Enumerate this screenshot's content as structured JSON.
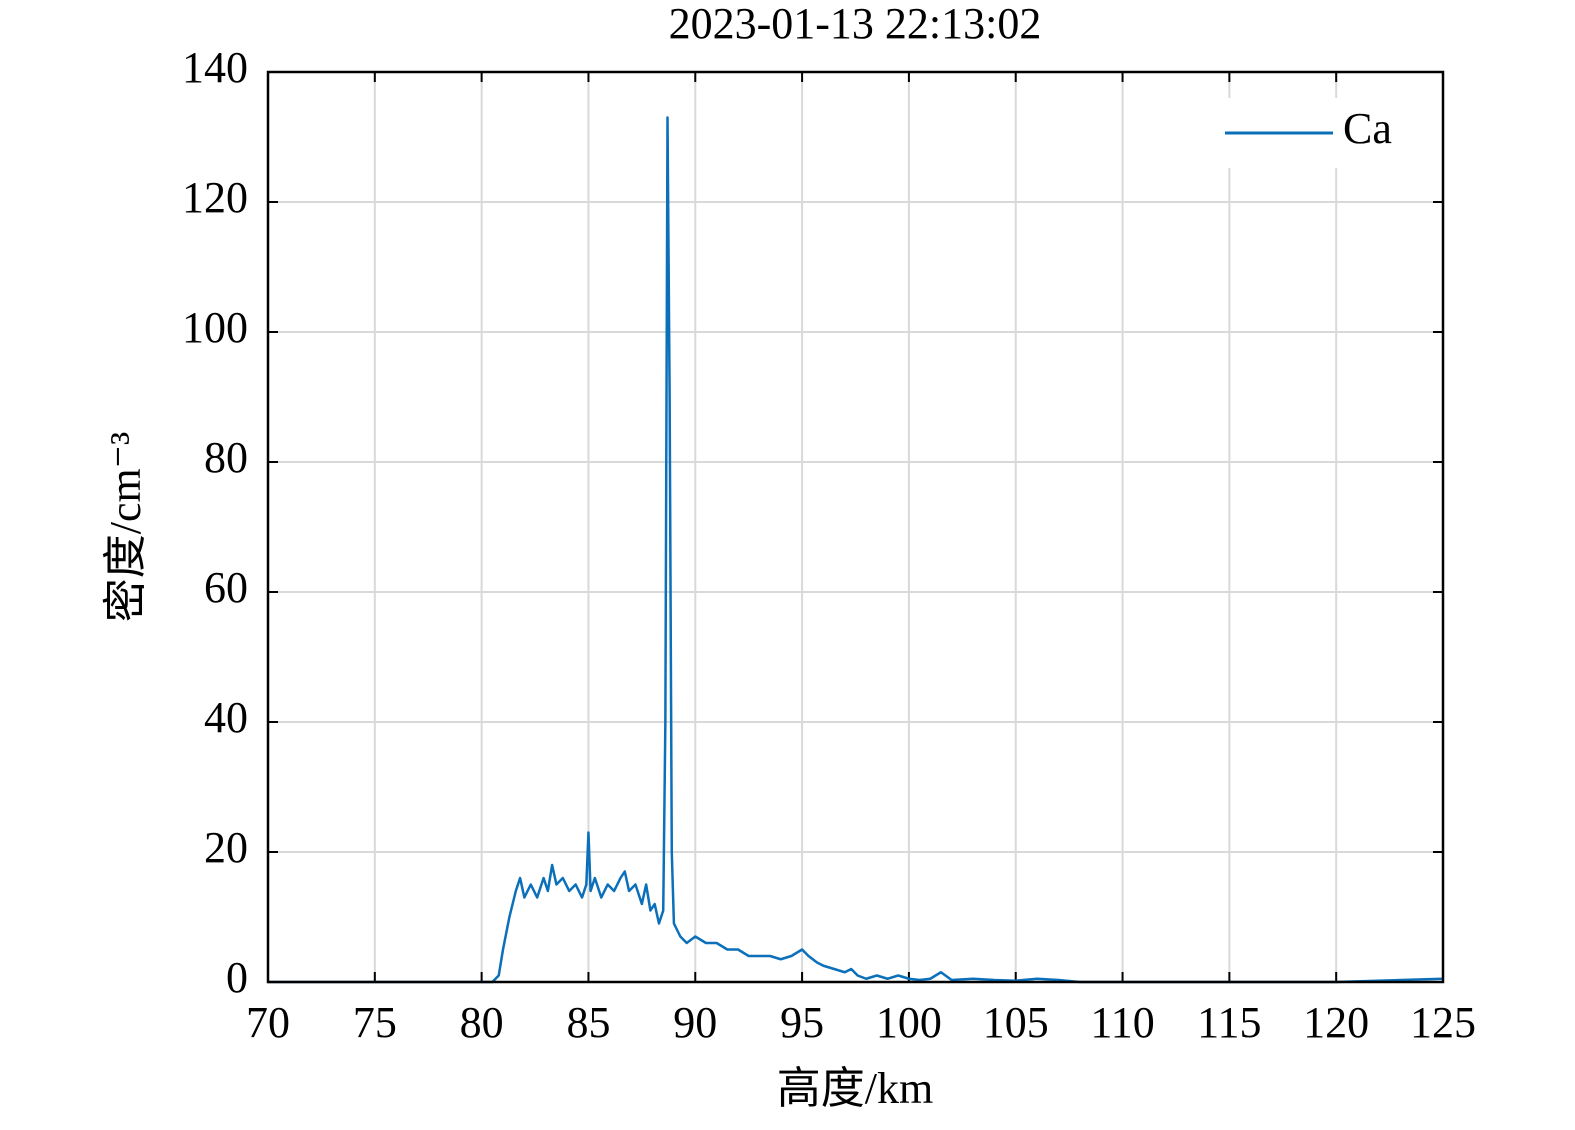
{
  "chart_data": {
    "type": "line",
    "title": "2023-01-13 22:13:02",
    "xlabel": "高度/km",
    "ylabel": "密度/cm⁻³",
    "x": [
      70,
      75,
      80,
      80.5,
      80.8,
      81,
      81.3,
      81.6,
      81.8,
      82,
      82.3,
      82.6,
      82.9,
      83.1,
      83.3,
      83.5,
      83.8,
      84.1,
      84.4,
      84.7,
      84.9,
      85,
      85.1,
      85.3,
      85.6,
      85.9,
      86.2,
      86.5,
      86.7,
      86.9,
      87.2,
      87.5,
      87.7,
      87.9,
      88.1,
      88.3,
      88.5,
      88.6,
      88.7,
      88.8,
      88.9,
      89,
      89.3,
      89.6,
      90,
      90.5,
      91,
      91.5,
      92,
      92.5,
      93,
      93.5,
      94,
      94.5,
      95,
      95.3,
      95.7,
      96,
      96.5,
      97,
      97.3,
      97.6,
      98,
      98.5,
      99,
      99.5,
      100,
      100.5,
      101,
      101.5,
      102,
      103,
      104,
      105,
      106,
      107,
      108,
      110,
      115,
      120,
      125
    ],
    "series": [
      {
        "name": "Ca",
        "color": "#0b6fba",
        "values": [
          0,
          0,
          0,
          0,
          1,
          5,
          10,
          14,
          16,
          13,
          15,
          13,
          16,
          14,
          18,
          15,
          16,
          14,
          15,
          13,
          15,
          23,
          14,
          16,
          13,
          15,
          14,
          16,
          17,
          14,
          15,
          12,
          15,
          11,
          12,
          9,
          11,
          40,
          133,
          90,
          20,
          9,
          7,
          6,
          7,
          6,
          6,
          5,
          5,
          4,
          4,
          4,
          3.5,
          4,
          5,
          4,
          3,
          2.5,
          2,
          1.5,
          2,
          1,
          0.5,
          1,
          0.5,
          1,
          0.5,
          0.3,
          0.5,
          1.5,
          0.3,
          0.5,
          0.3,
          0.2,
          0.5,
          0.3,
          0,
          0,
          0,
          0,
          0.5
        ]
      }
    ],
    "xlim": [
      70,
      125
    ],
    "ylim": [
      0,
      140
    ],
    "xticks": [
      70,
      75,
      80,
      85,
      90,
      95,
      100,
      105,
      110,
      115,
      120,
      125
    ],
    "yticks": [
      0,
      20,
      40,
      60,
      80,
      100,
      120,
      140
    ],
    "grid": true,
    "legend": "upper right"
  }
}
